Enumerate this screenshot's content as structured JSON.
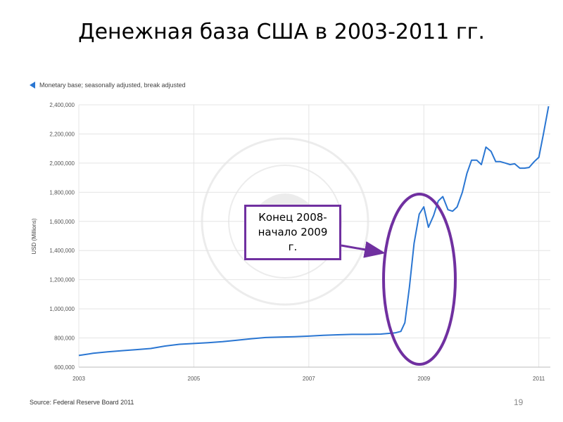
{
  "slide": {
    "title": "Денежная база  США в 2003-2011 гг.",
    "page_number": "19",
    "callout_text": "Конец 2008-\nначало 2009\nг."
  },
  "chart_data": {
    "type": "line",
    "legend": "Monetary base; seasonally adjusted, break adjusted",
    "ylabel": "USD (Millions)",
    "xlabel": "",
    "source": "Source: Federal Reserve Board 2011",
    "ylim": [
      600000,
      2400000
    ],
    "xlim": [
      2003.0,
      2011.2
    ],
    "yticks": [
      "600,000",
      "800,000",
      "1,000,000",
      "1,200,000",
      "1,400,000",
      "1,600,000",
      "1,800,000",
      "2,000,000",
      "2,200,000",
      "2,400,000"
    ],
    "ytick_values": [
      600000,
      800000,
      1000000,
      1200000,
      1400000,
      1600000,
      1800000,
      2000000,
      2200000,
      2400000
    ],
    "xticks": [
      "2003",
      "2005",
      "2007",
      "2009",
      "2011"
    ],
    "xtick_values": [
      2003,
      2005,
      2007,
      2009,
      2011
    ],
    "grid": true,
    "colors": {
      "line": "#2a76d2",
      "annotation": "#7030a0"
    },
    "series": [
      {
        "x": [
          2003.0,
          2003.25,
          2003.5,
          2003.75,
          2004.0,
          2004.25,
          2004.5,
          2004.75,
          2005.0,
          2005.25,
          2005.5,
          2005.75,
          2006.0,
          2006.25,
          2006.5,
          2006.75,
          2007.0,
          2007.25,
          2007.5,
          2007.75,
          2008.0,
          2008.25,
          2008.5,
          2008.6,
          2008.67,
          2008.75,
          2008.83,
          2008.92,
          2009.0,
          2009.08,
          2009.17,
          2009.25,
          2009.33,
          2009.42,
          2009.5,
          2009.58,
          2009.67,
          2009.75,
          2009.83,
          2009.92,
          2010.0,
          2010.08,
          2010.17,
          2010.25,
          2010.33,
          2010.42,
          2010.5,
          2010.58,
          2010.67,
          2010.75,
          2010.83,
          2010.92,
          2011.0,
          2011.08,
          2011.17
        ],
        "values": [
          680000,
          695000,
          705000,
          713000,
          720000,
          728000,
          745000,
          757000,
          762000,
          768000,
          775000,
          785000,
          795000,
          803000,
          806000,
          809000,
          813000,
          818000,
          822000,
          825000,
          825000,
          827000,
          835000,
          845000,
          905000,
          1150000,
          1450000,
          1650000,
          1700000,
          1560000,
          1640000,
          1740000,
          1770000,
          1680000,
          1670000,
          1700000,
          1800000,
          1930000,
          2020000,
          2020000,
          1990000,
          2110000,
          2080000,
          2010000,
          2010000,
          2000000,
          1990000,
          1995000,
          1965000,
          1965000,
          1970000,
          2010000,
          2040000,
          2200000,
          2390000
        ]
      }
    ]
  }
}
